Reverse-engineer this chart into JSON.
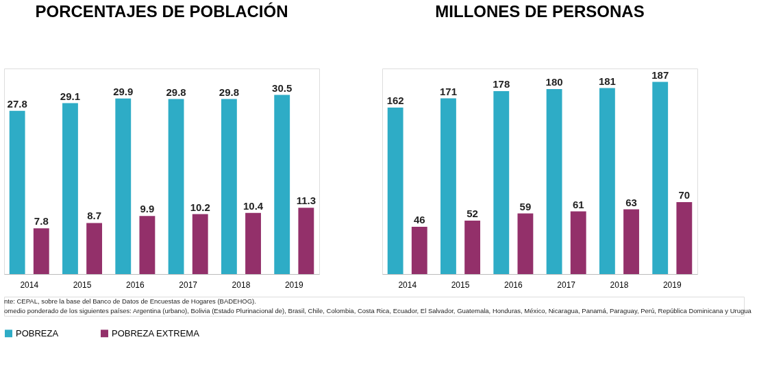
{
  "chart_data": [
    {
      "type": "bar",
      "title": "PORCENTAJES DE POBLACIÓN",
      "categories": [
        "2014",
        "2015",
        "2016",
        "2017",
        "2018",
        "2019"
      ],
      "series": [
        {
          "name": "POBREZA",
          "color": "#2eacc6",
          "values": [
            27.8,
            29.1,
            29.9,
            29.8,
            29.8,
            30.5
          ]
        },
        {
          "name": "POBREZA EXTREMA",
          "color": "#93306a",
          "values": [
            7.8,
            8.7,
            9.9,
            10.2,
            10.4,
            11.3
          ]
        }
      ],
      "data_labels": true,
      "legend": "bottom",
      "grid": false,
      "tick_labels": "x",
      "annotations": [
        "nte: CEPAL, sobre la base del Banco de Datos de Encuestas de Hogares (BADEHOG).",
        "omedio ponderado de los siguientes países: Argentina (urbano), Bolivia (Estado Plurinacional de), Brasil, Chile, Colombia, Costa Rica, Ecuador, El Salvador, Guatemala, Honduras, México, Nicaragua, Panamá, Paraguay, Perú, República Dominicana y Urugua"
      ]
    },
    {
      "type": "bar",
      "title": "MILLONES DE PERSONAS",
      "categories": [
        "2014",
        "2015",
        "2016",
        "2017",
        "2018",
        "2019"
      ],
      "series": [
        {
          "name": "POBREZA",
          "color": "#2eacc6",
          "values": [
            162,
            171,
            178,
            180,
            181,
            187
          ]
        },
        {
          "name": "POBREZA EXTREMA",
          "color": "#93306a",
          "values": [
            46,
            52,
            59,
            61,
            63,
            70
          ]
        }
      ],
      "data_labels": true,
      "legend": "bottom",
      "grid": false,
      "tick_labels": "x"
    }
  ]
}
